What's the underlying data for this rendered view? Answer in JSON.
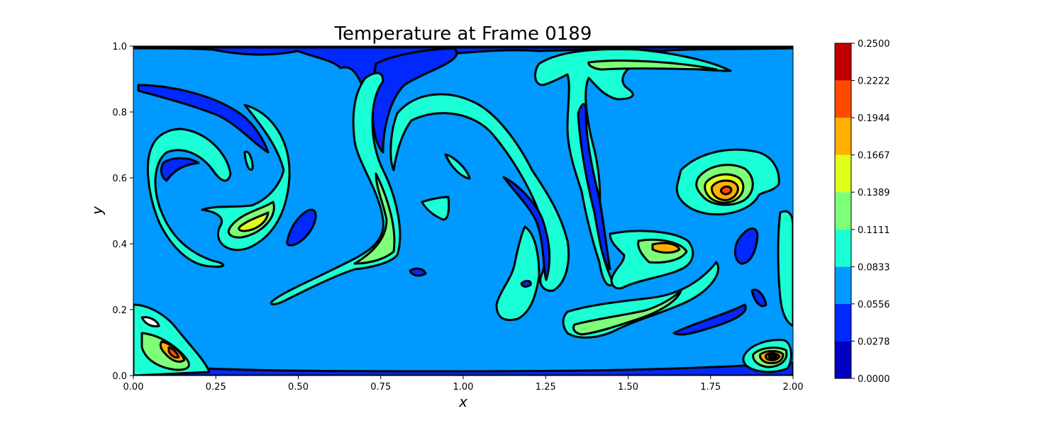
{
  "chart_data": {
    "type": "heatmap",
    "subtype": "filled-contour",
    "title": "Temperature at Frame 0189",
    "xlabel": "x",
    "ylabel": "y",
    "xlim": [
      0.0,
      2.0
    ],
    "ylim": [
      0.0,
      1.0
    ],
    "xticks": [
      "0.00",
      "0.25",
      "0.50",
      "0.75",
      "1.00",
      "1.25",
      "1.50",
      "1.75",
      "2.00"
    ],
    "yticks": [
      "0.0",
      "0.2",
      "0.4",
      "0.6",
      "0.8",
      "1.0"
    ],
    "grid": false,
    "colorbar": {
      "levels": [
        "0.0000",
        "0.0278",
        "0.0556",
        "0.0833",
        "0.1111",
        "0.1389",
        "0.1667",
        "0.1944",
        "0.2222",
        "0.2500"
      ],
      "colors": [
        "#0000c0",
        "#0028ff",
        "#0099ff",
        "#1affd5",
        "#7dff7a",
        "#e0ff1a",
        "#ffb000",
        "#ff4a00",
        "#c00000"
      ]
    },
    "background_level_range": [
      0.0556,
      0.0833
    ],
    "contour_line_color": "#000000",
    "features": [
      {
        "name": "warm-vortex",
        "center": [
          1.8,
          0.55
        ],
        "peak_range": [
          0.1944,
          0.2222
        ]
      },
      {
        "name": "hot-spot-bottom-right",
        "center": [
          1.94,
          0.05
        ],
        "peak_range": [
          0.2222,
          0.25
        ]
      },
      {
        "name": "hot-spot-bottom-left",
        "center": [
          0.13,
          0.08
        ],
        "peak_range": [
          0.1944,
          0.2222
        ]
      },
      {
        "name": "warm-patch-left",
        "center": [
          0.37,
          0.45
        ],
        "peak_range": [
          0.1389,
          0.1667
        ]
      },
      {
        "name": "warm-patch-mid-right",
        "center": [
          1.6,
          0.39
        ],
        "peak_range": [
          0.1667,
          0.1944
        ]
      }
    ]
  }
}
